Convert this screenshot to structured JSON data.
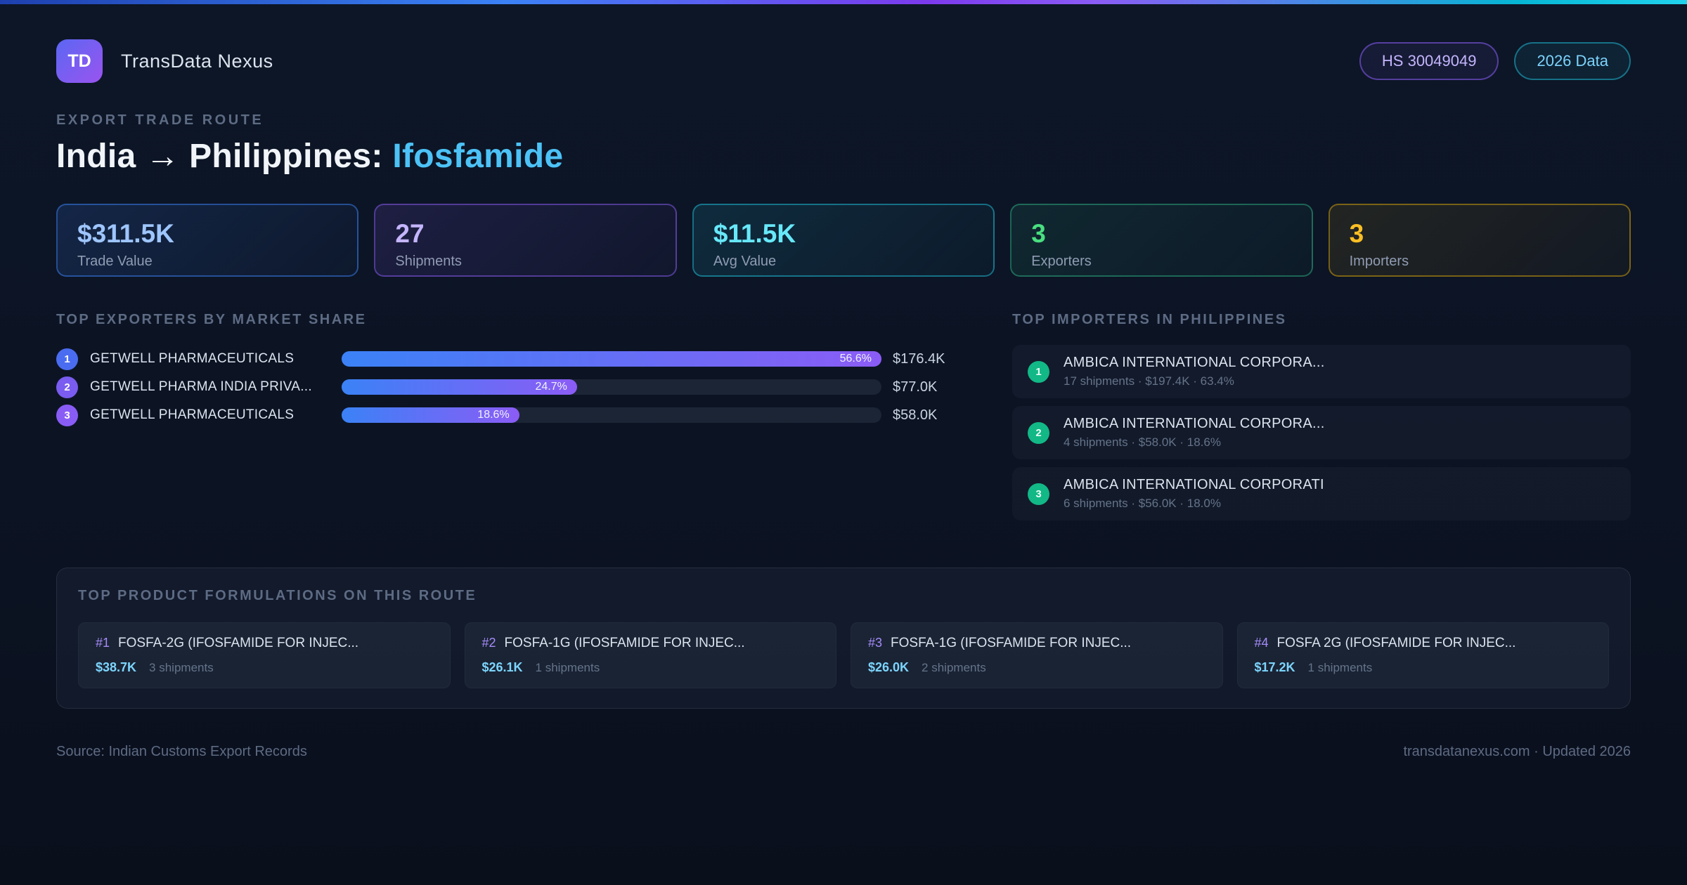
{
  "header": {
    "logo_text": "TD",
    "app_name": "TransData Nexus",
    "hs_badge": "HS 30049049",
    "year_badge": "2026 Data"
  },
  "hero": {
    "eyebrow": "EXPORT TRADE ROUTE",
    "title_main": "India → Philippines:",
    "title_highlight": "Ifosfamide"
  },
  "stats": [
    {
      "value": "$311.5K",
      "label": "Trade Value"
    },
    {
      "value": "27",
      "label": "Shipments"
    },
    {
      "value": "$11.5K",
      "label": "Avg Value"
    },
    {
      "value": "3",
      "label": "Exporters"
    },
    {
      "value": "3",
      "label": "Importers"
    }
  ],
  "exporters": {
    "title": "TOP EXPORTERS BY MARKET SHARE",
    "rows": [
      {
        "rank": "1",
        "name": "GETWELL PHARMACEUTICALS",
        "share": "56.6%",
        "value": "$176.4K",
        "bar_width": "100%"
      },
      {
        "rank": "2",
        "name": "GETWELL PHARMA INDIA PRIVA...",
        "share": "24.7%",
        "value": "$77.0K",
        "bar_width": "43.6%"
      },
      {
        "rank": "3",
        "name": "GETWELL PHARMACEUTICALS",
        "share": "18.6%",
        "value": "$58.0K",
        "bar_width": "32.9%"
      }
    ]
  },
  "importers": {
    "title": "TOP IMPORTERS IN PHILIPPINES",
    "items": [
      {
        "rank": "1",
        "name": "AMBICA INTERNATIONAL CORPORA...",
        "detail": "17 shipments · $197.4K · 63.4%"
      },
      {
        "rank": "2",
        "name": "AMBICA INTERNATIONAL CORPORA...",
        "detail": "4 shipments · $58.0K · 18.6%"
      },
      {
        "rank": "3",
        "name": "AMBICA INTERNATIONAL CORPORATI",
        "detail": "6 shipments · $56.0K · 18.0%"
      }
    ]
  },
  "formulations": {
    "title": "TOP PRODUCT FORMULATIONS ON THIS ROUTE",
    "cards": [
      {
        "rank": "#1",
        "name": "FOSFA-2G (IFOSFAMIDE FOR INJEC...",
        "value": "$38.7K",
        "shipments": "3 shipments"
      },
      {
        "rank": "#2",
        "name": "FOSFA-1G (IFOSFAMIDE FOR INJEC...",
        "value": "$26.1K",
        "shipments": "1 shipments"
      },
      {
        "rank": "#3",
        "name": "FOSFA-1G (IFOSFAMIDE FOR INJEC...",
        "value": "$26.0K",
        "shipments": "2 shipments"
      },
      {
        "rank": "#4",
        "name": "FOSFA 2G (IFOSFAMIDE FOR INJEC...",
        "value": "$17.2K",
        "shipments": "1 shipments"
      }
    ]
  },
  "footer": {
    "source": "Source: Indian Customs Export Records",
    "site": "transdatanexus.com · Updated 2026"
  },
  "chart_data": {
    "type": "bar",
    "title": "TOP EXPORTERS BY MARKET SHARE",
    "categories": [
      "GETWELL PHARMACEUTICALS",
      "GETWELL PHARMA INDIA PRIVA...",
      "GETWELL PHARMACEUTICALS"
    ],
    "series": [
      {
        "name": "Market share (%)",
        "values": [
          56.6,
          24.7,
          18.6
        ]
      },
      {
        "name": "Trade value (USD K)",
        "values": [
          176.4,
          77.0,
          58.0
        ]
      }
    ],
    "layout": {
      "orientation": "horizontal",
      "bars_scaled_to_max": true,
      "value_labels": "inside-end"
    }
  }
}
